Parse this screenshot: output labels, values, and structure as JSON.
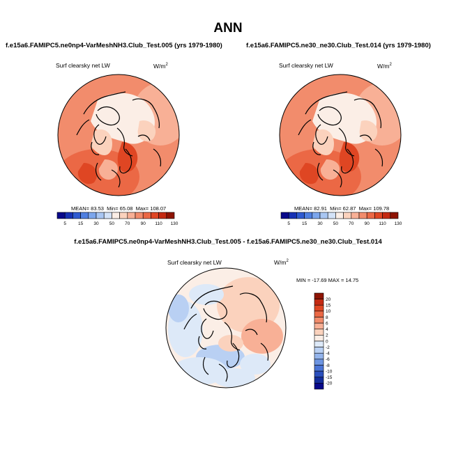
{
  "title": "ANN",
  "panels": [
    {
      "id": "left",
      "title": "f.e15a6.FAMIPC5.ne0np4-VarMeshNH3.Club_Test.005 (yrs 1979-1980)",
      "variable": "Surf clearsky net LW",
      "units_base": "W/m",
      "units_exp": "2",
      "stats": {
        "mean_label": "MEAN=",
        "mean": "83.53",
        "min_label": "Min=",
        "min": "65.08",
        "max_label": "Max=",
        "max": "108.07"
      },
      "colorbar": {
        "ticks": [
          "5",
          "15",
          "30",
          "50",
          "70",
          "90",
          "110",
          "130"
        ],
        "colors": [
          "#08088a",
          "#1631b4",
          "#2e5ad0",
          "#4f7fe0",
          "#7ca6ec",
          "#a9c6f2",
          "#d3e2f7",
          "#fbeee6",
          "#fbd2bd",
          "#f8b096",
          "#f28c6c",
          "#eb6845",
          "#df4623",
          "#c42a12",
          "#8e1404"
        ]
      }
    },
    {
      "id": "right",
      "title": "f.e15a6.FAMIPC5.ne30_ne30.Club_Test.014 (yrs 1979-1980)",
      "variable": "Surf clearsky net LW",
      "units_base": "W/m",
      "units_exp": "2",
      "stats": {
        "mean_label": "MEAN=",
        "mean": "82.91",
        "min_label": "Min=",
        "min": "62.87",
        "max_label": "Max=",
        "max": "109.78"
      },
      "colorbar": {
        "ticks": [
          "5",
          "15",
          "30",
          "50",
          "70",
          "90",
          "110",
          "130"
        ],
        "colors": [
          "#08088a",
          "#1631b4",
          "#2e5ad0",
          "#4f7fe0",
          "#7ca6ec",
          "#a9c6f2",
          "#d3e2f7",
          "#fbeee6",
          "#fbd2bd",
          "#f8b096",
          "#f28c6c",
          "#eb6845",
          "#df4623",
          "#c42a12",
          "#8e1404"
        ]
      }
    },
    {
      "id": "diff",
      "title": "f.e15a6.FAMIPC5.ne0np4-VarMeshNH3.Club_Test.005 - f.e15a6.FAMIPC5.ne30_ne30.Club_Test.014",
      "variable": "Surf clearsky net LW",
      "units_base": "W/m",
      "units_exp": "2",
      "stats_text": "MIN = -17.69 MAX =  14.75",
      "colorbar": {
        "ticks": [
          "20",
          "15",
          "10",
          "8",
          "6",
          "4",
          "2",
          "0",
          "-2",
          "-4",
          "-6",
          "-8",
          "-10",
          "-15",
          "-20"
        ],
        "colors": [
          "#8e1404",
          "#c42a12",
          "#df4623",
          "#eb6845",
          "#f28c6c",
          "#f8b096",
          "#fbd2bd",
          "#fbeee6",
          "#dde9f8",
          "#b9d0f3",
          "#93b4ec",
          "#6d95e2",
          "#4a74d6",
          "#2b4fbd",
          "#132d9c",
          "#08088a"
        ]
      }
    }
  ]
}
